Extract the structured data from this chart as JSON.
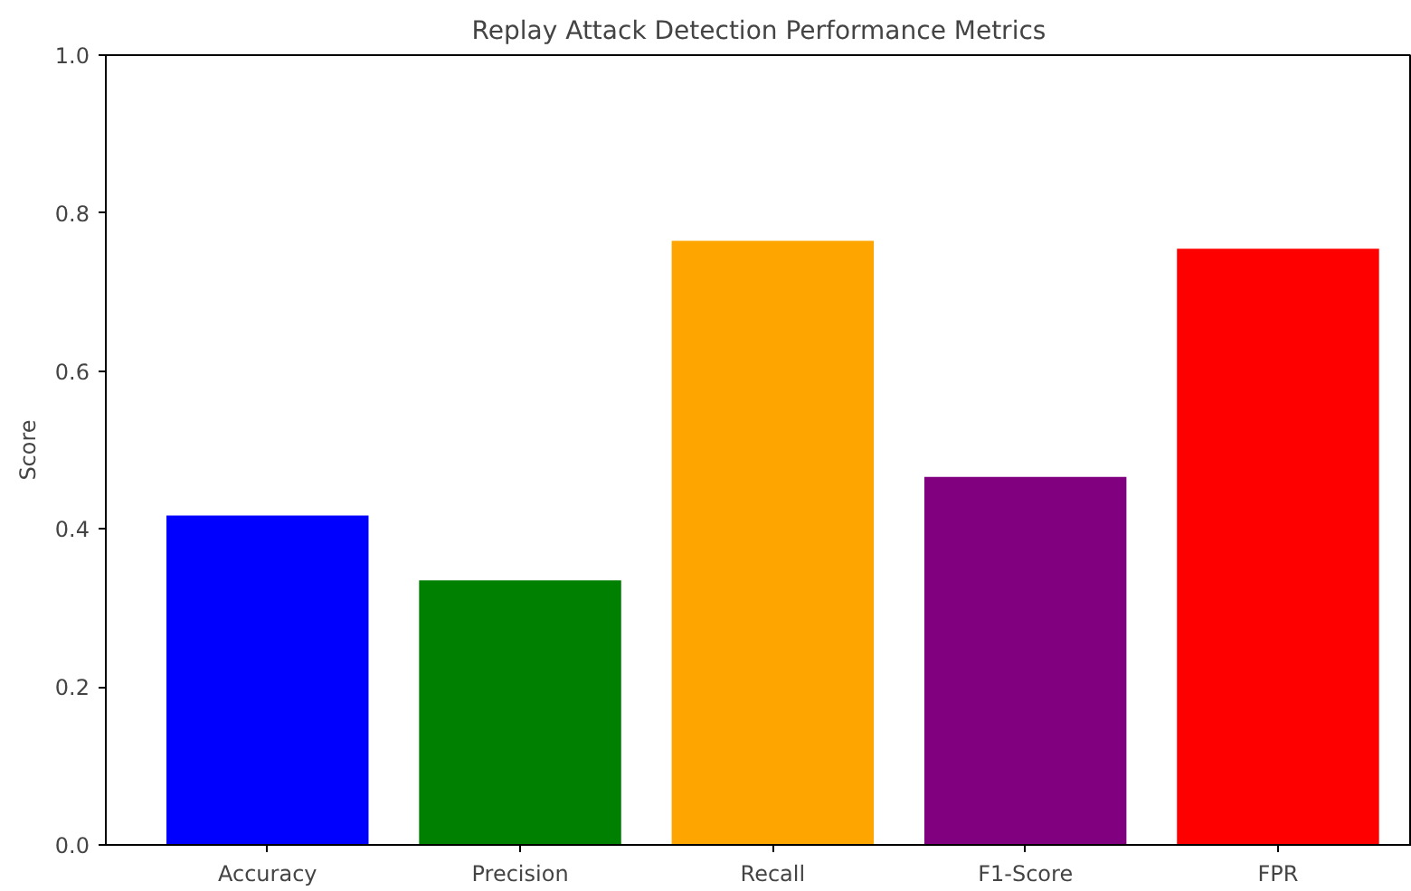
{
  "chart_data": {
    "type": "bar",
    "title": "Replay Attack Detection Performance Metrics",
    "ylabel": "Score",
    "categories": [
      "Accuracy",
      "Precision",
      "Recall",
      "F1-Score",
      "FPR"
    ],
    "values": [
      0.417,
      0.335,
      0.765,
      0.466,
      0.755
    ],
    "colors": [
      "#0000ff",
      "#008000",
      "#ffa500",
      "#800080",
      "#ff0000"
    ],
    "ylim": [
      0,
      1
    ],
    "yticks": [
      {
        "value": 0,
        "label": "0.0"
      },
      {
        "value": 0.2,
        "label": "0.2"
      },
      {
        "value": 0.4,
        "label": "0.4"
      },
      {
        "value": 0.6,
        "label": "0.6"
      },
      {
        "value": 0.8,
        "label": "0.8"
      },
      {
        "value": 1,
        "label": "1.0"
      }
    ],
    "grid": false
  }
}
